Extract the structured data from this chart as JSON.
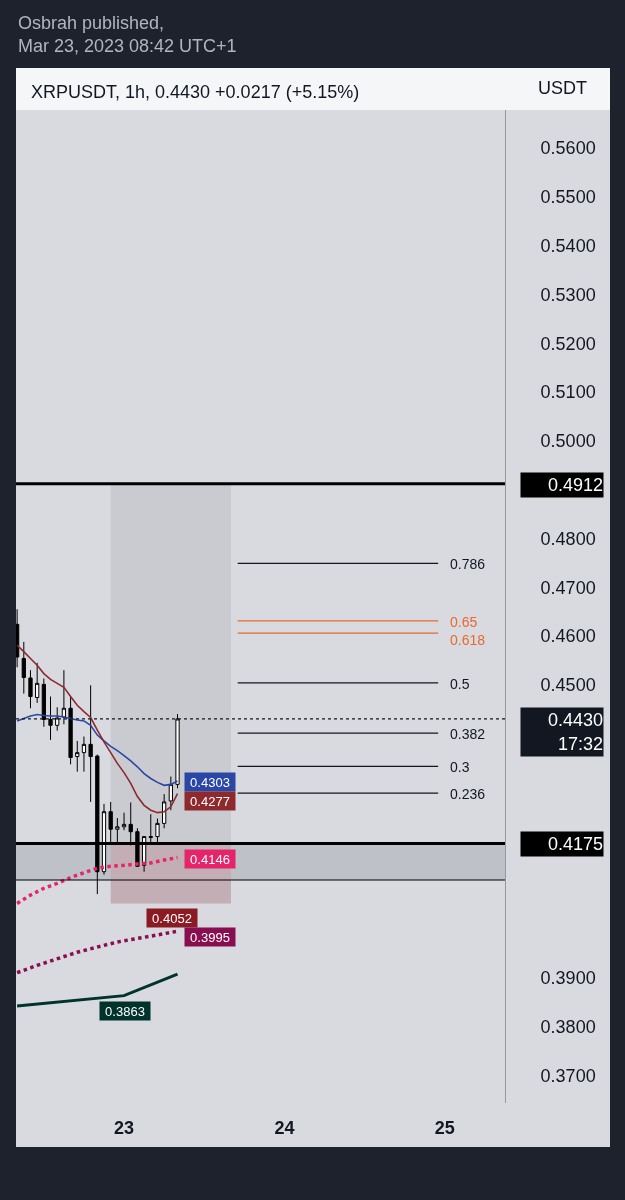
{
  "chart_data": {
    "type": "candlestick",
    "title": "XRPUSDT, 1h, 0.4430 +0.0217 (+5.15%)",
    "subtitle": "Osbrah published,\nMar 23, 2023 08:42 UTC+1",
    "ylabel": "USDT",
    "x": [
      "2023-03-22T08:00",
      "2023-03-22T09:00",
      "2023-03-22T10:00",
      "2023-03-22T11:00",
      "2023-03-22T12:00",
      "2023-03-22T13:00",
      "2023-03-22T14:00",
      "2023-03-22T15:00",
      "2023-03-22T16:00",
      "2023-03-22T17:00",
      "2023-03-22T18:00",
      "2023-03-22T19:00",
      "2023-03-22T20:00",
      "2023-03-22T21:00",
      "2023-03-22T22:00",
      "2023-03-22T23:00",
      "2023-03-23T00:00",
      "2023-03-23T01:00",
      "2023-03-23T02:00",
      "2023-03-23T03:00",
      "2023-03-23T04:00",
      "2023-03-23T05:00",
      "2023-03-23T06:00",
      "2023-03-23T07:00",
      "2023-03-23T08:00"
    ],
    "ohlc": [
      [
        0.4624,
        0.4655,
        0.4536,
        0.4557
      ],
      [
        0.4554,
        0.4588,
        0.4482,
        0.4515
      ],
      [
        0.4514,
        0.453,
        0.4452,
        0.4476
      ],
      [
        0.4474,
        0.4545,
        0.4463,
        0.4503
      ],
      [
        0.4501,
        0.4513,
        0.4414,
        0.4429
      ],
      [
        0.4429,
        0.4476,
        0.4387,
        0.4417
      ],
      [
        0.4417,
        0.4454,
        0.4406,
        0.4432
      ],
      [
        0.4434,
        0.453,
        0.4419,
        0.4452
      ],
      [
        0.4452,
        0.4477,
        0.4337,
        0.4351
      ],
      [
        0.4353,
        0.4385,
        0.4322,
        0.4361
      ],
      [
        0.4361,
        0.4394,
        0.4322,
        0.4378
      ],
      [
        0.4378,
        0.4499,
        0.426,
        0.4353
      ],
      [
        0.4354,
        0.4357,
        0.4071,
        0.4117
      ],
      [
        0.4117,
        0.4256,
        0.4111,
        0.424
      ],
      [
        0.424,
        0.426,
        0.4174,
        0.4204
      ],
      [
        0.4204,
        0.4227,
        0.4174,
        0.4209
      ],
      [
        0.4209,
        0.4238,
        0.4202,
        0.4214
      ],
      [
        0.4214,
        0.4259,
        0.4171,
        0.4199
      ],
      [
        0.4199,
        0.4206,
        0.4127,
        0.4128
      ],
      [
        0.413,
        0.419,
        0.4117,
        0.4189
      ],
      [
        0.4187,
        0.4235,
        0.4175,
        0.4189
      ],
      [
        0.4189,
        0.4226,
        0.4175,
        0.4216
      ],
      [
        0.4216,
        0.4276,
        0.4206,
        0.426
      ],
      [
        0.4262,
        0.4312,
        0.4243,
        0.4296
      ],
      [
        0.4296,
        0.444,
        0.4288,
        0.443
      ]
    ],
    "xlim": [
      "2023-03-22T07:50",
      "2023-03-25T09:00"
    ],
    "xticks": [
      {
        "value": "2023-03-23",
        "label": "23"
      },
      {
        "value": "2023-03-24",
        "label": "24"
      },
      {
        "value": "2023-03-25",
        "label": "25"
      }
    ],
    "ylim": [
      0.3643,
      0.5678
    ],
    "yticks": [
      {
        "value": 0.37,
        "label": "0.3700"
      },
      {
        "value": 0.38,
        "label": "0.3800"
      },
      {
        "value": 0.39,
        "label": "0.3900"
      },
      {
        "value": 0.45,
        "label": "0.4500"
      },
      {
        "value": 0.46,
        "label": "0.4600"
      },
      {
        "value": 0.47,
        "label": "0.4700"
      },
      {
        "value": 0.48,
        "label": "0.4800"
      },
      {
        "value": 0.5,
        "label": "0.5000"
      },
      {
        "value": 0.51,
        "label": "0.5100"
      },
      {
        "value": 0.52,
        "label": "0.5200"
      },
      {
        "value": 0.53,
        "label": "0.5300"
      },
      {
        "value": 0.54,
        "label": "0.5400"
      },
      {
        "value": 0.55,
        "label": "0.5500"
      },
      {
        "value": 0.56,
        "label": "0.5600"
      }
    ],
    "series": [
      {
        "type": "bar",
        "x": [
          "2023-03-23T07:00"
        ],
        "base": [
          0.4175
        ],
        "values": [
          0.0737
        ],
        "color": "#c9cbd0"
      },
      {
        "type": "bar",
        "x": [
          "2023-03-23T07:00"
        ],
        "base": [
          0.4052
        ],
        "values": [
          0.0123
        ],
        "color": "#c4aeb6"
      },
      {
        "type": "line",
        "color": "#2b47a6",
        "values": [
          0.4426,
          0.4431,
          0.4436,
          0.4439,
          0.4437,
          0.4436,
          0.4436,
          0.4434,
          0.4431,
          0.4428,
          0.4426,
          0.4417,
          0.4397,
          0.4385,
          0.4374,
          0.4365,
          0.4355,
          0.4344,
          0.4332,
          0.4318,
          0.4308,
          0.43,
          0.4294,
          0.4296,
          0.4303
        ],
        "value_labels": [
          null,
          null,
          null,
          null,
          null,
          null,
          null,
          null,
          null,
          null,
          null,
          null,
          null,
          null,
          null,
          null,
          null,
          null,
          null,
          null,
          null,
          null,
          null,
          null,
          "0.4303"
        ]
      },
      {
        "type": "line",
        "color": "#8e2a2e",
        "values": [
          0.4581,
          0.4568,
          0.4554,
          0.454,
          0.4523,
          0.4511,
          0.4503,
          0.4495,
          0.4476,
          0.4458,
          0.4445,
          0.4433,
          0.4407,
          0.4383,
          0.4361,
          0.4339,
          0.432,
          0.4298,
          0.4271,
          0.4253,
          0.4243,
          0.4238,
          0.424,
          0.425,
          0.4277
        ],
        "value_labels": [
          null,
          null,
          null,
          null,
          null,
          null,
          null,
          null,
          null,
          null,
          null,
          null,
          null,
          null,
          null,
          null,
          null,
          null,
          null,
          null,
          null,
          null,
          null,
          null,
          "0.4277"
        ]
      },
      {
        "type": "line",
        "line_style": "dotted",
        "color": "#e6246a",
        "x": [
          "2023-03-22T08:00",
          "2023-03-22T10:00",
          "2023-03-22T12:00",
          "2023-03-22T14:00",
          "2023-03-22T16:00",
          "2023-03-22T18:00",
          "2023-03-22T20:00",
          "2023-03-22T22:00",
          "2023-03-23T00:00",
          "2023-03-23T02:00",
          "2023-03-23T04:00",
          "2023-03-23T06:00",
          "2023-03-23T08:00"
        ],
        "values": [
          0.4052,
          0.4069,
          0.4083,
          0.4093,
          0.4105,
          0.4115,
          0.4124,
          0.4128,
          0.413,
          0.4133,
          0.4135,
          0.4141,
          0.4146
        ],
        "value_labels": [
          null,
          null,
          null,
          null,
          null,
          null,
          null,
          null,
          null,
          null,
          null,
          null,
          "0.4146"
        ]
      },
      {
        "type": "line",
        "line_style": "dotted",
        "color": "#880e4f",
        "x": [
          "2023-03-22T08:00",
          "2023-03-22T11:00",
          "2023-03-22T17:00",
          "2023-03-22T23:00",
          "2023-03-23T04:00",
          "2023-03-23T08:00"
        ],
        "values": [
          0.391,
          0.3925,
          0.3952,
          0.3973,
          0.3985,
          0.3995
        ],
        "value_labels": [
          null,
          null,
          null,
          null,
          null,
          "0.3995"
        ]
      },
      {
        "type": "line",
        "color": "#00332b",
        "x": [
          "2023-03-22T08:00",
          "2023-03-23T00:00",
          "2023-03-23T08:00"
        ],
        "values": [
          0.3842,
          0.3863,
          0.3907
        ],
        "value_labels": [
          null,
          "0.3863",
          null
        ]
      },
      {
        "type": "line",
        "name": "0.786",
        "color": "#131722",
        "x": [
          "2023-03-23T17:00",
          "2023-03-24T23:00"
        ],
        "values": [
          0.4749,
          0.4749
        ]
      },
      {
        "type": "line",
        "name": "0.65",
        "color": "#e8692c",
        "x": [
          "2023-03-23T17:00",
          "2023-03-24T23:00"
        ],
        "values": [
          0.4631,
          0.4631
        ]
      },
      {
        "type": "line",
        "name": "0.618",
        "color": "#e8692c",
        "x": [
          "2023-03-23T17:00",
          "2023-03-24T23:00"
        ],
        "values": [
          0.4606,
          0.4606
        ]
      },
      {
        "type": "line",
        "name": "0.5",
        "color": "#131722",
        "x": [
          "2023-03-23T17:00",
          "2023-03-24T23:00"
        ],
        "values": [
          0.4504,
          0.4504
        ]
      },
      {
        "type": "line",
        "name": "0.382",
        "color": "#131722",
        "x": [
          "2023-03-23T17:00",
          "2023-03-24T23:00"
        ],
        "values": [
          0.4401,
          0.4401
        ]
      },
      {
        "type": "line",
        "name": "0.3",
        "color": "#131722",
        "x": [
          "2023-03-23T17:00",
          "2023-03-24T23:00"
        ],
        "values": [
          0.4333,
          0.4333
        ]
      },
      {
        "type": "line",
        "name": "0.236",
        "color": "#131722",
        "x": [
          "2023-03-23T17:00",
          "2023-03-24T23:00"
        ],
        "values": [
          0.4278,
          0.4278
        ]
      }
    ],
    "ref_lines": [
      {
        "axis": "y",
        "value": 0.4912,
        "label": "0.4912",
        "color": "#000000"
      },
      {
        "axis": "y",
        "value": 0.443,
        "label": "0.4430\n17:32",
        "color": "#131722",
        "line_style": "dotted"
      },
      {
        "axis": "y",
        "value": 0.4175,
        "label": "0.4175",
        "color": "#000000"
      },
      {
        "axis": "y",
        "value": 0.41,
        "color": "#000000"
      }
    ],
    "bands": [
      {
        "axis": "y",
        "from": 0.41,
        "to": 0.4175,
        "color": "#b3b6bc"
      }
    ],
    "annotations": [
      {
        "text": "0.4052",
        "x": "2023-03-23T07:00",
        "y": 0.4052
      }
    ]
  }
}
